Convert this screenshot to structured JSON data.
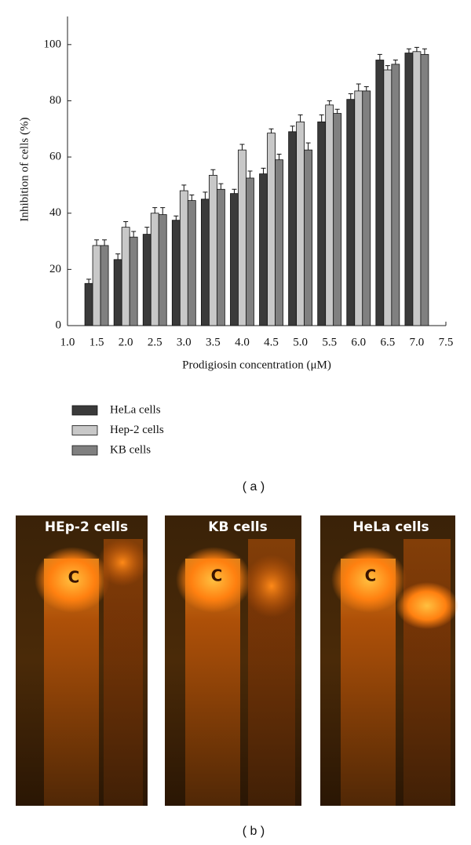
{
  "chart_data": {
    "type": "bar",
    "xlabel": "Prodigiosin concentration (μM)",
    "ylabel": "Inhibition of cells (%)",
    "x": [
      1.5,
      2.0,
      2.5,
      3.0,
      3.5,
      4.0,
      4.5,
      5.0,
      5.5,
      6.0,
      6.5,
      7.0
    ],
    "series": [
      {
        "name": "HeLa cells",
        "color": "#3a3a3a",
        "values": [
          15,
          23.5,
          32.5,
          37.5,
          45,
          47,
          54,
          69,
          72.5,
          80.5,
          94.5,
          97
        ],
        "errors": [
          1.5,
          2,
          2.5,
          1.5,
          2.5,
          1.5,
          2,
          2,
          2.5,
          2,
          2,
          1.5
        ]
      },
      {
        "name": "Hep-2 cells",
        "color": "#c8c8c8",
        "values": [
          28.5,
          35,
          40,
          48,
          53.5,
          62.5,
          68.5,
          72.5,
          78.5,
          83.5,
          91,
          97.5
        ],
        "errors": [
          2,
          2,
          2,
          2,
          2,
          2,
          1.5,
          2.5,
          1.5,
          2.5,
          1.5,
          1.5
        ]
      },
      {
        "name": "KB cells",
        "color": "#808080",
        "values": [
          28.5,
          31.5,
          39.5,
          44.5,
          48.5,
          52.5,
          59,
          62.5,
          75.5,
          83.5,
          93,
          96.5
        ],
        "errors": [
          2,
          2,
          2.5,
          2,
          2,
          2.5,
          2,
          2.5,
          1.5,
          1.5,
          1.5,
          2
        ]
      }
    ],
    "xlim": [
      1.0,
      7.5
    ],
    "xticks": [
      {
        "value": 1,
        "label": "1.0"
      },
      1.5,
      {
        "value": 2,
        "label": "2.0"
      },
      2.5,
      {
        "value": 3,
        "label": "3.0"
      },
      3.5,
      {
        "value": 4,
        "label": "4.0"
      },
      4.5,
      {
        "value": 5,
        "label": "5.0"
      },
      5.5,
      {
        "value": 6,
        "label": "6.0"
      },
      6.5,
      {
        "value": 7,
        "label": "7.0"
      },
      7.5
    ],
    "ylim": [
      0,
      110
    ],
    "yticks": [
      0,
      20,
      40,
      60,
      80,
      100
    ],
    "caption": "( a )"
  },
  "gels": {
    "panels": [
      {
        "label": "HEp-2 cells",
        "lane": "C"
      },
      {
        "label": "KB cells",
        "lane": "C"
      },
      {
        "label": "HeLa cells",
        "lane": "C"
      }
    ],
    "caption": "( b )"
  }
}
